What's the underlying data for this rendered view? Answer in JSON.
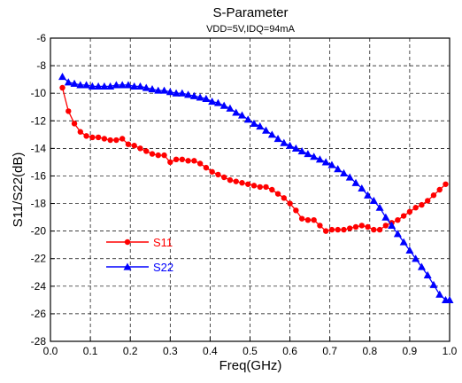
{
  "chart_data": {
    "type": "line",
    "title": "S-Parameter",
    "subtitle": "VDD=5V,IDQ=94mA",
    "xlabel": "Freq(GHz)",
    "ylabel": "S11/S22(dB)",
    "xlim": [
      0.0,
      1.0
    ],
    "ylim": [
      -28,
      -6
    ],
    "xticks": [
      "0.0",
      "0.1",
      "0.2",
      "0.3",
      "0.4",
      "0.5",
      "0.6",
      "0.7",
      "0.8",
      "0.9",
      "1.0"
    ],
    "yticks": [
      "-6",
      "-8",
      "-10",
      "-12",
      "-14",
      "-16",
      "-18",
      "-20",
      "-22",
      "-24",
      "-26",
      "-28"
    ],
    "grid": true,
    "legend_position": "lower-left",
    "series": [
      {
        "name": "S11",
        "color": "#ff0000",
        "marker": "circle",
        "x": [
          0.03,
          0.045,
          0.06,
          0.075,
          0.09,
          0.105,
          0.12,
          0.135,
          0.15,
          0.165,
          0.18,
          0.195,
          0.21,
          0.225,
          0.24,
          0.255,
          0.27,
          0.285,
          0.3,
          0.315,
          0.33,
          0.345,
          0.36,
          0.375,
          0.39,
          0.405,
          0.42,
          0.435,
          0.45,
          0.465,
          0.48,
          0.495,
          0.51,
          0.525,
          0.54,
          0.555,
          0.57,
          0.585,
          0.6,
          0.615,
          0.63,
          0.645,
          0.66,
          0.675,
          0.69,
          0.705,
          0.72,
          0.735,
          0.75,
          0.765,
          0.78,
          0.795,
          0.81,
          0.825,
          0.84,
          0.855,
          0.87,
          0.885,
          0.9,
          0.915,
          0.93,
          0.945,
          0.96,
          0.975,
          0.99
        ],
        "values": [
          -9.6,
          -11.3,
          -12.2,
          -12.8,
          -13.1,
          -13.2,
          -13.2,
          -13.3,
          -13.4,
          -13.4,
          -13.3,
          -13.7,
          -13.8,
          -14.0,
          -14.2,
          -14.4,
          -14.5,
          -14.5,
          -15.0,
          -14.8,
          -14.8,
          -14.9,
          -14.9,
          -15.1,
          -15.4,
          -15.7,
          -15.9,
          -16.1,
          -16.3,
          -16.4,
          -16.5,
          -16.6,
          -16.7,
          -16.8,
          -16.8,
          -17.0,
          -17.3,
          -17.6,
          -18.0,
          -18.5,
          -19.1,
          -19.2,
          -19.2,
          -19.6,
          -20.0,
          -19.9,
          -19.9,
          -19.9,
          -19.8,
          -19.7,
          -19.6,
          -19.7,
          -19.9,
          -19.9,
          -19.6,
          -19.4,
          -19.2,
          -18.9,
          -18.6,
          -18.3,
          -18.1,
          -17.8,
          -17.4,
          -17.0,
          -16.6
        ]
      },
      {
        "name": "S22",
        "color": "#0000ff",
        "marker": "triangle",
        "x": [
          0.03,
          0.045,
          0.06,
          0.075,
          0.09,
          0.105,
          0.12,
          0.135,
          0.15,
          0.165,
          0.18,
          0.195,
          0.21,
          0.225,
          0.24,
          0.255,
          0.27,
          0.285,
          0.3,
          0.315,
          0.33,
          0.345,
          0.36,
          0.375,
          0.39,
          0.405,
          0.42,
          0.435,
          0.45,
          0.465,
          0.48,
          0.495,
          0.51,
          0.525,
          0.54,
          0.555,
          0.57,
          0.585,
          0.6,
          0.615,
          0.63,
          0.645,
          0.66,
          0.675,
          0.69,
          0.705,
          0.72,
          0.735,
          0.75,
          0.765,
          0.78,
          0.795,
          0.81,
          0.825,
          0.84,
          0.855,
          0.87,
          0.885,
          0.9,
          0.915,
          0.93,
          0.945,
          0.96,
          0.975,
          0.99,
          1.0
        ],
        "values": [
          -8.8,
          -9.2,
          -9.3,
          -9.4,
          -9.4,
          -9.5,
          -9.5,
          -9.5,
          -9.5,
          -9.4,
          -9.4,
          -9.4,
          -9.5,
          -9.5,
          -9.6,
          -9.7,
          -9.8,
          -9.8,
          -9.9,
          -10.0,
          -10.0,
          -10.1,
          -10.2,
          -10.3,
          -10.4,
          -10.6,
          -10.7,
          -10.9,
          -11.1,
          -11.4,
          -11.6,
          -11.9,
          -12.2,
          -12.4,
          -12.7,
          -13.0,
          -13.3,
          -13.6,
          -13.8,
          -14.0,
          -14.2,
          -14.4,
          -14.6,
          -14.8,
          -15.0,
          -15.2,
          -15.5,
          -15.8,
          -16.1,
          -16.5,
          -16.9,
          -17.4,
          -17.8,
          -18.3,
          -19.0,
          -19.6,
          -20.2,
          -20.8,
          -21.4,
          -22.0,
          -22.6,
          -23.2,
          -23.9,
          -24.6,
          -25.0,
          -25.0
        ]
      }
    ]
  }
}
